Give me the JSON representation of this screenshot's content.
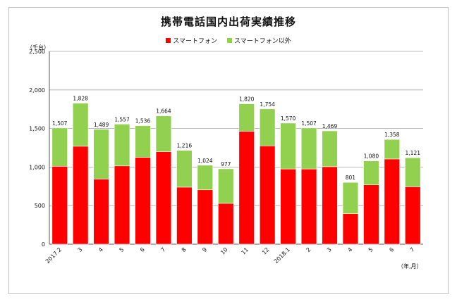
{
  "title": "携帯電話国内出荷実績推移",
  "legend": [
    {
      "label": "スマートフォン",
      "color": "#ff0000"
    },
    {
      "label": "スマートフォン以外",
      "color": "#92d050"
    }
  ],
  "y_unit": "（千台）",
  "x_unit": "（年,月）",
  "chart_data": {
    "type": "bar",
    "stacked": true,
    "title": "携帯電話国内出荷実績推移",
    "categories": [
      "2017.2",
      "3",
      "4",
      "5",
      "6",
      "7",
      "8",
      "9",
      "10",
      "11",
      "12",
      "2018.1",
      "2",
      "3",
      "4",
      "5",
      "6",
      "7"
    ],
    "series": [
      {
        "name": "スマートフォン",
        "color": "#ff0000",
        "values": [
          1010,
          1270,
          845,
          1015,
          1125,
          1200,
          740,
          705,
          530,
          1465,
          1275,
          975,
          975,
          1005,
          395,
          770,
          1105,
          745
        ]
      },
      {
        "name": "スマートフォン以外",
        "color": "#92d050",
        "values": [
          497,
          558,
          644,
          542,
          411,
          464,
          476,
          319,
          447,
          355,
          479,
          595,
          532,
          464,
          406,
          310,
          253,
          376
        ]
      }
    ],
    "totals": [
      1507,
      1828,
      1489,
      1557,
      1536,
      1664,
      1216,
      1024,
      977,
      1820,
      1754,
      1570,
      1507,
      1469,
      801,
      1080,
      1358,
      1121
    ],
    "total_labels": [
      "1,507",
      "1,828",
      "1,489",
      "1,557",
      "1,536",
      "1,664",
      "1,216",
      "1,024",
      "977",
      "1,820",
      "1,754",
      "1,570",
      "1,507",
      "1,469",
      "801",
      "1,080",
      "1,358",
      "1,121"
    ],
    "ylim": [
      0,
      2500
    ],
    "yticks": [
      0,
      500,
      1000,
      1500,
      2000,
      2500
    ],
    "ytick_labels": [
      "0",
      "500",
      "1,000",
      "1,500",
      "2,000",
      "2,500"
    ],
    "grid": true,
    "legend_position": "top"
  }
}
